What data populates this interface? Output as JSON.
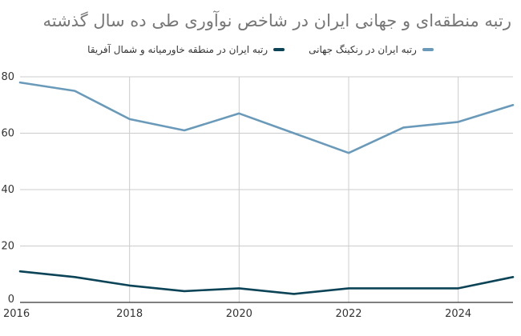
{
  "chart_data": {
    "type": "line",
    "title": "رتبه منطقه‌ای و جهانی ایران در شاخص نوآوری طی ده سال گذشته",
    "xlabel": "",
    "ylabel": "",
    "x": [
      2016,
      2017,
      2018,
      2019,
      2020,
      2021,
      2022,
      2023,
      2024,
      2025
    ],
    "x_ticks": [
      2016,
      2018,
      2020,
      2022,
      2024
    ],
    "y_ticks": [
      0,
      20,
      40,
      60,
      80
    ],
    "xlim": [
      2016,
      2025
    ],
    "ylim": [
      0,
      80
    ],
    "grid": true,
    "legend_position": "top",
    "series": [
      {
        "name": "رتبه ایران در رنکینگ جهانی",
        "color": "#6a9aba",
        "values": [
          78,
          75,
          65,
          61,
          67,
          60,
          53,
          62,
          64,
          70
        ]
      },
      {
        "name": "رتبه ایران در منطقه خاورمیانه و شمال آفریقا",
        "color": "#0b4357",
        "values": [
          11,
          9,
          6,
          4,
          5,
          3,
          5,
          5,
          5,
          9
        ]
      }
    ]
  }
}
